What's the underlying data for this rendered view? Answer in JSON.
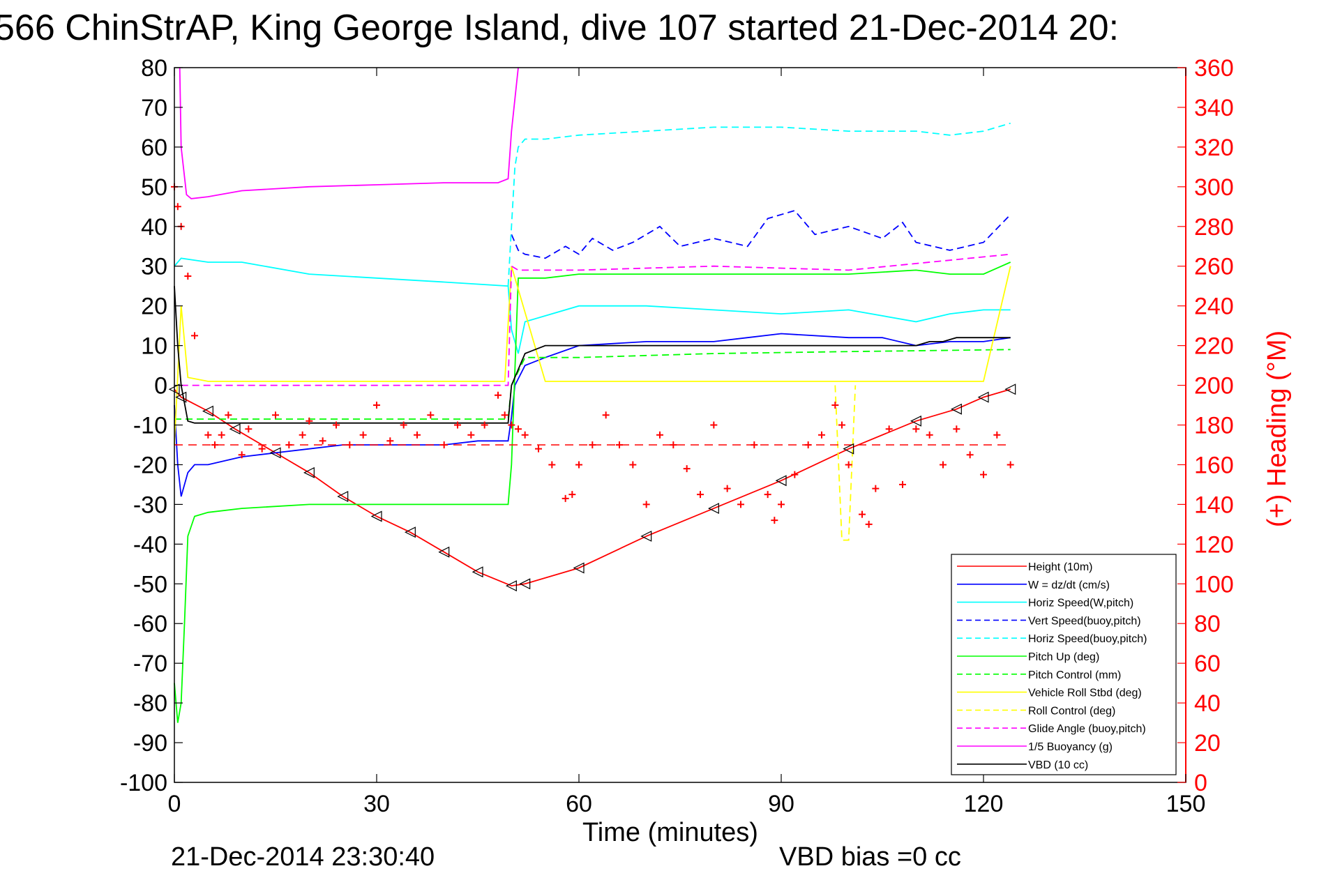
{
  "chart_data": {
    "type": "line",
    "title": "566 ChinStrAP, King George Island, dive 107 started 21-Dec-2014 20:",
    "xlabel": "Time (minutes)",
    "ylabel": "",
    "y2label": "(+) Heading (°M)",
    "footer_left": "21-Dec-2014 23:30:40",
    "footer_right": "VBD bias =0 cc",
    "xlim": [
      0,
      150
    ],
    "ylim": [
      -100,
      80
    ],
    "y2lim": [
      0,
      360
    ],
    "x_ticks": [
      "0",
      "30",
      "60",
      "90",
      "120",
      "150"
    ],
    "y_ticks": [
      "80",
      "70",
      "60",
      "50",
      "40",
      "30",
      "20",
      "10",
      "0",
      "-10",
      "-20",
      "-30",
      "-40",
      "-50",
      "-60",
      "-70",
      "-80",
      "-90",
      "-100"
    ],
    "y2_ticks": [
      "360",
      "340",
      "320",
      "300",
      "280",
      "260",
      "240",
      "220",
      "200",
      "180",
      "160",
      "140",
      "120",
      "100",
      "80",
      "60",
      "40",
      "20",
      "0"
    ],
    "grid": false,
    "legend_position": "bottom-right",
    "series": [
      {
        "name": "Height (10m)",
        "color": "#ff0000",
        "style": "solid",
        "marker": "triangle",
        "x": [
          0,
          1,
          5,
          9,
          15,
          20,
          25,
          30,
          35,
          40,
          45,
          50,
          52,
          60,
          70,
          80,
          90,
          100,
          110,
          116,
          120,
          124
        ],
        "y": [
          -1,
          -3,
          -6.5,
          -11,
          -17,
          -22,
          -28,
          -33,
          -37,
          -42,
          -47,
          -50.5,
          -50,
          -46,
          -38,
          -31,
          -24,
          -16,
          -9,
          -6,
          -3,
          -1
        ]
      },
      {
        "name": "W = dz/dt (cm/s)",
        "color": "#0000ff",
        "style": "solid",
        "x": [
          0,
          0.5,
          1,
          2,
          3,
          5,
          10,
          15,
          20,
          25,
          30,
          35,
          40,
          45,
          49.5,
          50,
          50.5,
          52,
          55,
          60,
          70,
          80,
          85,
          90,
          100,
          105,
          110,
          115,
          120,
          124
        ],
        "y": [
          -5,
          -20,
          -28,
          -22,
          -20,
          -20,
          -18,
          -17,
          -16,
          -15,
          -15,
          -15,
          -15,
          -14,
          -14,
          -8,
          0,
          5,
          7,
          10,
          11,
          11,
          12,
          13,
          12,
          12,
          10,
          11,
          11,
          12
        ]
      },
      {
        "name": "Horiz Speed(W,pitch)",
        "color": "#00ffff",
        "style": "solid",
        "x": [
          0,
          1,
          5,
          10,
          20,
          30,
          40,
          49.5,
          50,
          51,
          52,
          60,
          70,
          80,
          90,
          100,
          110,
          115,
          120,
          124
        ],
        "y": [
          30,
          32,
          31,
          31,
          28,
          27,
          26,
          25,
          14,
          8,
          16,
          20,
          20,
          19,
          18,
          19,
          16,
          18,
          19,
          19
        ]
      },
      {
        "name": "Vert Speed(buoy,pitch)",
        "color": "#0000ff",
        "style": "dashed",
        "x": [
          50,
          51,
          52,
          55,
          58,
          60,
          62,
          65,
          68,
          72,
          75,
          80,
          85,
          88,
          92,
          95,
          100,
          105,
          108,
          110,
          115,
          120,
          124
        ],
        "y": [
          38,
          34,
          33,
          32,
          35,
          33,
          37,
          34,
          36,
          40,
          35,
          37,
          35,
          42,
          44,
          38,
          40,
          37,
          41,
          36,
          34,
          36,
          43
        ]
      },
      {
        "name": "Horiz Speed(buoy,pitch)",
        "color": "#00ffff",
        "style": "dashed",
        "x": [
          49.5,
          50,
          50.5,
          51,
          52,
          55,
          60,
          70,
          80,
          90,
          100,
          110,
          115,
          120,
          124
        ],
        "y": [
          25,
          40,
          55,
          60,
          62,
          62,
          63,
          64,
          65,
          65,
          64,
          64,
          63,
          64,
          66
        ]
      },
      {
        "name": "Pitch Up (deg)",
        "color": "#00ff00",
        "style": "solid",
        "x": [
          0,
          0.5,
          1,
          1.5,
          2,
          3,
          5,
          10,
          20,
          30,
          40,
          49,
          49.5,
          50,
          51,
          55,
          60,
          70,
          80,
          90,
          100,
          110,
          115,
          120,
          124
        ],
        "y": [
          -75,
          -85,
          -80,
          -60,
          -38,
          -33,
          -32,
          -31,
          -30,
          -30,
          -30,
          -30,
          -30,
          -20,
          27,
          27,
          28,
          28,
          28,
          28,
          28,
          29,
          28,
          28,
          31
        ]
      },
      {
        "name": "Pitch Control (mm)",
        "color": "#00ff00",
        "style": "dashed",
        "x": [
          0,
          49.5,
          50,
          52,
          60,
          80,
          100,
          124
        ],
        "y": [
          -8.5,
          -8.5,
          0,
          7,
          7,
          8,
          8.5,
          9
        ]
      },
      {
        "name": "Vehicle Roll Stbd (deg)",
        "color": "#ffff00",
        "style": "solid",
        "x": [
          0,
          1,
          2,
          5,
          10,
          20,
          30,
          40,
          49,
          50,
          55,
          60,
          70,
          80,
          90,
          100,
          110,
          120,
          124
        ],
        "y": [
          -15,
          20,
          2,
          1,
          1,
          1,
          1,
          1,
          1,
          30,
          1,
          1,
          1,
          1,
          1,
          1,
          1,
          1,
          30
        ]
      },
      {
        "name": "Roll Control (deg)",
        "color": "#ffff00",
        "style": "dashed",
        "x": [
          98,
          99,
          99.5,
          100,
          101
        ],
        "y": [
          0,
          -39,
          -39,
          -39,
          0
        ]
      },
      {
        "name": "Glide Angle (buoy,pitch)",
        "color": "#ff00ff",
        "style": "dashed",
        "x": [
          1,
          49.5,
          50,
          51,
          60,
          80,
          100,
          124
        ],
        "y": [
          0,
          0,
          30,
          29,
          29,
          30,
          29,
          33
        ]
      },
      {
        "name": "1/5 Buoyancy (g)",
        "color": "#ff00ff",
        "style": "solid",
        "x": [
          0.8,
          1,
          1.8,
          2.5,
          5,
          10,
          20,
          30,
          40,
          45,
          48,
          49.5,
          50,
          51
        ],
        "y": [
          80,
          60,
          48,
          47,
          47.5,
          49,
          50,
          50.5,
          51,
          51,
          51,
          52,
          64,
          80
        ]
      },
      {
        "name": "VBD (10 cc)",
        "color": "#000000",
        "style": "solid",
        "x": [
          0,
          0.5,
          1,
          2,
          3,
          5,
          10,
          20,
          30,
          40,
          49.5,
          50,
          52,
          55,
          60,
          70,
          80,
          90,
          100,
          105,
          110,
          112,
          114,
          116,
          120,
          124
        ],
        "y": [
          25,
          10,
          0,
          -9,
          -9.5,
          -9.5,
          -9.5,
          -9.5,
          -9.5,
          -9.5,
          -9.5,
          0,
          8,
          10,
          10,
          10,
          10,
          10,
          10,
          10,
          10,
          11,
          11,
          12,
          12,
          12
        ]
      }
    ],
    "heading_series": {
      "name": "(+) Heading",
      "color": "#ff0000",
      "marker": "plus",
      "axis": "right",
      "x": [
        0,
        0.5,
        1,
        2,
        3,
        5,
        6,
        7,
        8,
        10,
        11,
        13,
        15,
        17,
        19,
        20,
        22,
        24,
        26,
        28,
        30,
        32,
        34,
        36,
        38,
        40,
        42,
        44,
        46,
        48,
        49,
        50,
        51,
        52,
        54,
        56,
        58,
        59,
        60,
        62,
        64,
        66,
        68,
        70,
        72,
        74,
        76,
        78,
        80,
        82,
        84,
        86,
        88,
        89,
        90,
        92,
        94,
        96,
        98,
        99,
        100,
        102,
        103,
        104,
        106,
        108,
        110,
        112,
        114,
        116,
        118,
        120,
        122,
        124
      ],
      "y": [
        300,
        290,
        280,
        255,
        225,
        175,
        170,
        175,
        185,
        165,
        178,
        168,
        185,
        170,
        175,
        182,
        172,
        180,
        170,
        175,
        190,
        172,
        180,
        175,
        185,
        170,
        180,
        175,
        180,
        195,
        185,
        180,
        178,
        175,
        168,
        160,
        143,
        145,
        160,
        170,
        185,
        170,
        160,
        140,
        175,
        170,
        158,
        145,
        180,
        148,
        140,
        170,
        145,
        132,
        140,
        155,
        170,
        175,
        190,
        180,
        160,
        135,
        130,
        148,
        178,
        150,
        178,
        175,
        160,
        178,
        165,
        155,
        175,
        160
      ]
    },
    "legend": [
      {
        "label": "Height (10m)",
        "color": "#ff0000",
        "style": "solid"
      },
      {
        "label": "W = dz/dt (cm/s)",
        "color": "#0000ff",
        "style": "solid"
      },
      {
        "label": "Horiz Speed(W,pitch)",
        "color": "#00ffff",
        "style": "solid"
      },
      {
        "label": "Vert Speed(buoy,pitch)",
        "color": "#0000ff",
        "style": "dashed"
      },
      {
        "label": "Horiz Speed(buoy,pitch)",
        "color": "#00ffff",
        "style": "dashed"
      },
      {
        "label": "Pitch Up (deg)",
        "color": "#00ff00",
        "style": "solid"
      },
      {
        "label": "Pitch Control (mm)",
        "color": "#00ff00",
        "style": "dashed"
      },
      {
        "label": "Vehicle Roll Stbd (deg)",
        "color": "#ffff00",
        "style": "solid"
      },
      {
        "label": "Roll Control (deg)",
        "color": "#ffff00",
        "style": "dashed"
      },
      {
        "label": "Glide Angle (buoy,pitch)",
        "color": "#ff00ff",
        "style": "dashed"
      },
      {
        "label": "1/5 Buoyancy (g)",
        "color": "#ff00ff",
        "style": "solid"
      },
      {
        "label": "VBD (10 cc)",
        "color": "#000000",
        "style": "solid"
      }
    ],
    "colors": {
      "left_axis": "#000000",
      "right_axis": "#ff0000"
    }
  }
}
